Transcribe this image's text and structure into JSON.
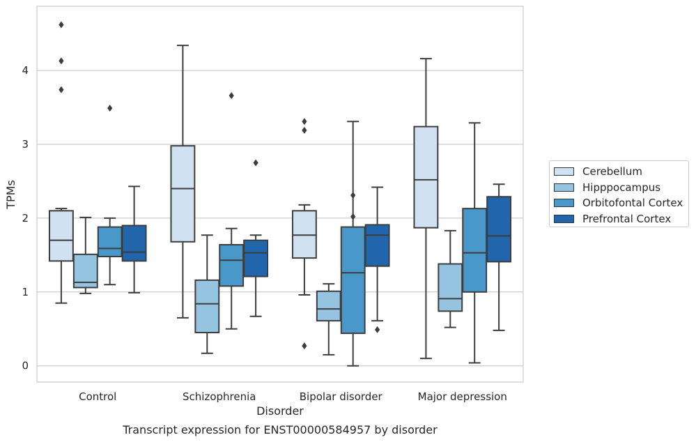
{
  "chart_data": {
    "type": "box",
    "title": "",
    "caption": "Transcript expression for ENST00000584957 by disorder",
    "xlabel": "Disorder",
    "ylabel": "TPMs",
    "ylim": [
      -0.22,
      4.87
    ],
    "yticks": [
      0,
      1,
      2,
      3,
      4
    ],
    "grid": "horizontal",
    "legend_position": "right",
    "categories": [
      "Control",
      "Schizophrenia",
      "Bipolar disorder",
      "Major depression"
    ],
    "series": [
      {
        "name": "Cerebellum",
        "color": "#d0e1f2",
        "boxes": [
          {
            "min": 0.85,
            "q1": 1.42,
            "median": 1.7,
            "q3": 2.1,
            "max": 2.13,
            "outliers": [
              3.74,
              4.13,
              4.62
            ]
          },
          {
            "min": 0.65,
            "q1": 1.68,
            "median": 2.4,
            "q3": 2.98,
            "max": 4.34,
            "outliers": []
          },
          {
            "min": 0.96,
            "q1": 1.46,
            "median": 1.77,
            "q3": 2.1,
            "max": 2.18,
            "outliers": [
              0.27,
              3.19,
              3.31
            ]
          },
          {
            "min": 0.1,
            "q1": 1.87,
            "median": 2.52,
            "q3": 3.24,
            "max": 4.16,
            "outliers": []
          }
        ]
      },
      {
        "name": "Hipppocampus",
        "color": "#94c4df",
        "boxes": [
          {
            "min": 0.98,
            "q1": 1.06,
            "median": 1.13,
            "q3": 1.51,
            "max": 2.01,
            "outliers": []
          },
          {
            "min": 0.17,
            "q1": 0.45,
            "median": 0.84,
            "q3": 1.16,
            "max": 1.77,
            "outliers": []
          },
          {
            "min": 0.15,
            "q1": 0.61,
            "median": 0.77,
            "q3": 1.01,
            "max": 1.11,
            "outliers": []
          },
          {
            "min": 0.52,
            "q1": 0.74,
            "median": 0.91,
            "q3": 1.38,
            "max": 1.83,
            "outliers": []
          }
        ]
      },
      {
        "name": "Orbitofontal Cortex",
        "color": "#4a98c9",
        "boxes": [
          {
            "min": 1.1,
            "q1": 1.48,
            "median": 1.59,
            "q3": 1.88,
            "max": 2.0,
            "outliers": [
              3.49
            ]
          },
          {
            "min": 0.5,
            "q1": 1.08,
            "median": 1.43,
            "q3": 1.64,
            "max": 1.86,
            "outliers": [
              3.66
            ]
          },
          {
            "min": 0.0,
            "q1": 0.44,
            "median": 1.26,
            "q3": 1.88,
            "max": 3.31,
            "outliers": [
              2.02,
              2.31
            ]
          },
          {
            "min": 0.04,
            "q1": 1.0,
            "median": 1.53,
            "q3": 2.13,
            "max": 3.29,
            "outliers": []
          }
        ]
      },
      {
        "name": "Prefrontal Cortex",
        "color": "#2166ac",
        "boxes": [
          {
            "min": 0.99,
            "q1": 1.42,
            "median": 1.54,
            "q3": 1.9,
            "max": 2.43,
            "outliers": []
          },
          {
            "min": 0.67,
            "q1": 1.21,
            "median": 1.53,
            "q3": 1.7,
            "max": 1.77,
            "outliers": [
              2.75
            ]
          },
          {
            "min": 0.61,
            "q1": 1.35,
            "median": 1.77,
            "q3": 1.91,
            "max": 2.42,
            "outliers": [
              0.49
            ]
          },
          {
            "min": 0.48,
            "q1": 1.41,
            "median": 1.76,
            "q3": 2.29,
            "max": 2.46,
            "outliers": []
          }
        ]
      }
    ]
  }
}
